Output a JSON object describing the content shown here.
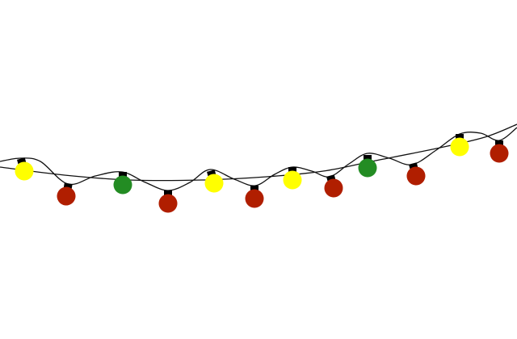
{
  "scene": {
    "subject": "string-lights",
    "background_color": "#ffffff",
    "wire_color": "#111111",
    "cap_color": "#000000",
    "colors": {
      "yellow": "#ffff00",
      "red": "#b01e00",
      "green": "#238c23"
    },
    "bulbs": [
      "yellow",
      "red",
      "green",
      "red",
      "yellow",
      "red",
      "yellow",
      "red",
      "green",
      "red",
      "yellow",
      "red"
    ]
  }
}
